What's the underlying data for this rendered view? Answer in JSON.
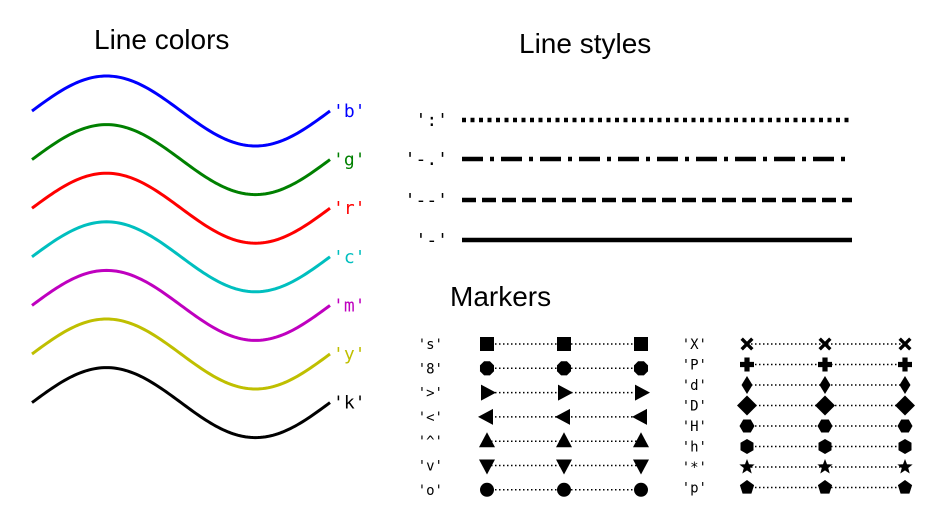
{
  "titles": {
    "line_colors": "Line colors",
    "line_styles": "Line styles",
    "markers": "Markers"
  },
  "line_colors": [
    {
      "code": "'b'",
      "color": "#0000ff",
      "name": "blue"
    },
    {
      "code": "'g'",
      "color": "#008000",
      "name": "green"
    },
    {
      "code": "'r'",
      "color": "#ff0000",
      "name": "red"
    },
    {
      "code": "'c'",
      "color": "#00bfbf",
      "name": "cyan"
    },
    {
      "code": "'m'",
      "color": "#bf00bf",
      "name": "magenta"
    },
    {
      "code": "'y'",
      "color": "#bfbf00",
      "name": "yellow"
    },
    {
      "code": "'k'",
      "color": "#000000",
      "name": "black"
    }
  ],
  "line_styles": [
    {
      "code": "':'",
      "style": "dotted"
    },
    {
      "code": "'-.'",
      "style": "dashdot"
    },
    {
      "code": "'--'",
      "style": "dashed"
    },
    {
      "code": "'-'",
      "style": "solid"
    }
  ],
  "markers_left": [
    {
      "code": "'s'",
      "shape": "square"
    },
    {
      "code": "'8'",
      "shape": "octagon"
    },
    {
      "code": "'>'",
      "shape": "triangle-right"
    },
    {
      "code": "'<'",
      "shape": "triangle-left"
    },
    {
      "code": "'^'",
      "shape": "triangle-up"
    },
    {
      "code": "'v'",
      "shape": "triangle-down"
    },
    {
      "code": "'o'",
      "shape": "circle"
    }
  ],
  "markers_right": [
    {
      "code": "'X'",
      "shape": "x-filled"
    },
    {
      "code": "'P'",
      "shape": "plus-filled"
    },
    {
      "code": "'d'",
      "shape": "thin-diamond"
    },
    {
      "code": "'D'",
      "shape": "diamond"
    },
    {
      "code": "'H'",
      "shape": "hexagon-flat"
    },
    {
      "code": "'h'",
      "shape": "hexagon-pointy"
    },
    {
      "code": "'*'",
      "shape": "star"
    },
    {
      "code": "'p'",
      "shape": "pentagon"
    }
  ]
}
